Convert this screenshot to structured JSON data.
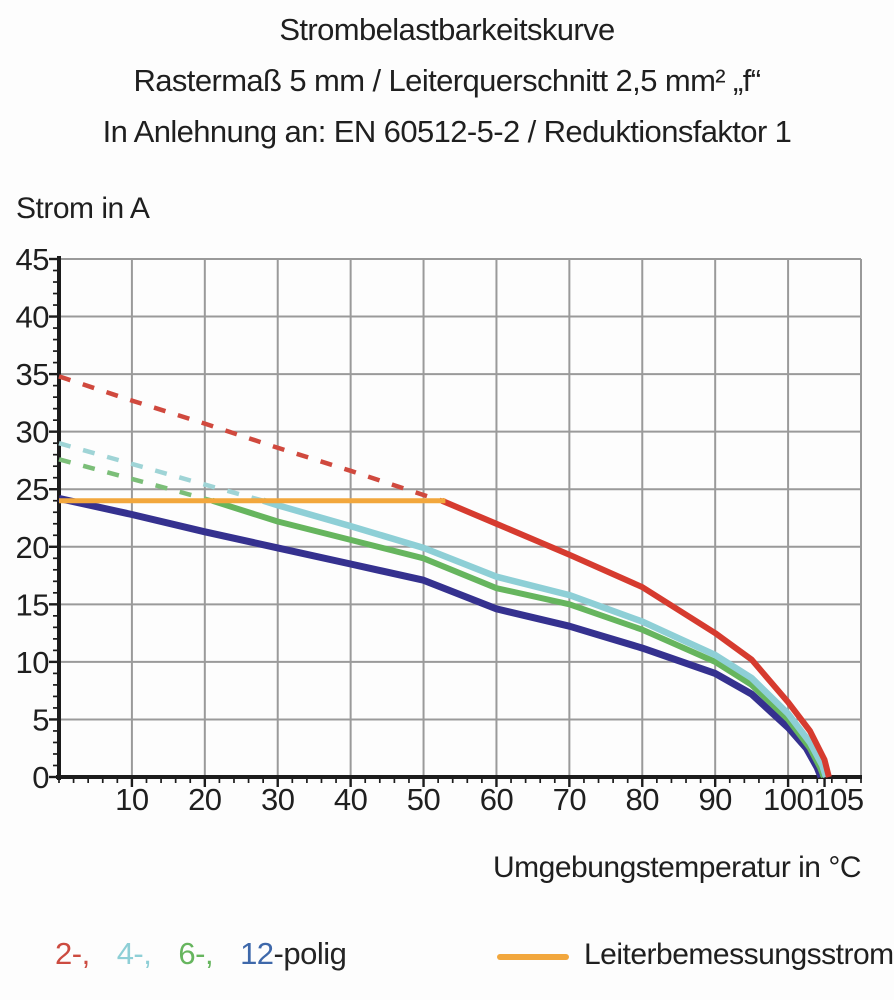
{
  "title": {
    "line1": "Strombelastbarkeitskurve",
    "line2": "Rastermaß 5 mm / Leiterquerschnitt 2,5 mm² „f“",
    "line3": "In Anlehnung an: EN 60512-5-2 / Reduktionsfaktor 1"
  },
  "chart_data": {
    "type": "line",
    "title": "Strombelastbarkeitskurve",
    "xlabel": "Umgebungstemperatur in °C",
    "ylabel": "Strom in A",
    "xlim": [
      0,
      110
    ],
    "ylim": [
      0,
      45
    ],
    "x_ticks": [
      10,
      20,
      30,
      40,
      50,
      60,
      70,
      80,
      90,
      100,
      105
    ],
    "y_ticks": [
      45,
      40,
      35,
      30,
      25,
      20,
      15,
      10,
      5,
      0
    ],
    "grid": true,
    "grid_color": "#9a9a9a",
    "legend_position": "bottom",
    "series": [
      {
        "name": "2-polig-extrapolated",
        "color": "#d0493e",
        "style": "dashed",
        "width": 4.5,
        "points": [
          [
            0,
            34.8
          ],
          [
            10,
            32.7
          ],
          [
            20,
            30.7
          ],
          [
            30,
            28.6
          ],
          [
            40,
            26.6
          ],
          [
            50,
            24.5
          ],
          [
            52.5,
            24
          ]
        ]
      },
      {
        "name": "4-polig-extrapolated",
        "color": "#9fd4d6",
        "style": "dashed",
        "width": 4.5,
        "points": [
          [
            0,
            29.0
          ],
          [
            10,
            27.2
          ],
          [
            20,
            25.4
          ],
          [
            28,
            24
          ]
        ]
      },
      {
        "name": "6-polig-extrapolated",
        "color": "#7bbe78",
        "style": "dashed",
        "width": 4.5,
        "points": [
          [
            0,
            27.6
          ],
          [
            10,
            25.9
          ],
          [
            21,
            24
          ]
        ]
      },
      {
        "name": "12-polig",
        "color": "#35318f",
        "style": "solid",
        "width": 7,
        "points": [
          [
            0,
            24.2
          ],
          [
            10,
            22.8
          ],
          [
            20,
            21.3
          ],
          [
            30,
            19.9
          ],
          [
            40,
            18.5
          ],
          [
            50,
            17.1
          ],
          [
            60,
            14.6
          ],
          [
            70,
            13.1
          ],
          [
            80,
            11.2
          ],
          [
            90,
            9.0
          ],
          [
            95,
            7.2
          ],
          [
            100,
            4.3
          ],
          [
            102.5,
            2.5
          ],
          [
            104,
            0.8
          ],
          [
            104.5,
            0
          ]
        ]
      },
      {
        "name": "6-polig",
        "color": "#66b55e",
        "style": "solid",
        "width": 6,
        "points": [
          [
            21,
            24
          ],
          [
            30,
            22.2
          ],
          [
            40,
            20.6
          ],
          [
            50,
            19.0
          ],
          [
            60,
            16.4
          ],
          [
            70,
            15.0
          ],
          [
            80,
            12.8
          ],
          [
            90,
            10.0
          ],
          [
            95,
            8.0
          ],
          [
            100,
            5.0
          ],
          [
            103,
            2.5
          ],
          [
            104.4,
            0.8
          ],
          [
            104.9,
            0
          ]
        ]
      },
      {
        "name": "4-polig",
        "color": "#8ecfd6",
        "style": "solid",
        "width": 6.5,
        "points": [
          [
            28,
            24
          ],
          [
            30,
            23.6
          ],
          [
            40,
            21.8
          ],
          [
            50,
            19.9
          ],
          [
            60,
            17.4
          ],
          [
            70,
            15.8
          ],
          [
            80,
            13.5
          ],
          [
            90,
            10.6
          ],
          [
            95,
            8.6
          ],
          [
            100,
            5.5
          ],
          [
            103,
            3.0
          ],
          [
            104.7,
            1.0
          ],
          [
            105.2,
            0
          ]
        ]
      },
      {
        "name": "2-polig",
        "color": "#d63b2f",
        "style": "solid",
        "width": 6,
        "points": [
          [
            52.5,
            24
          ],
          [
            60,
            22.0
          ],
          [
            70,
            19.3
          ],
          [
            80,
            16.5
          ],
          [
            90,
            12.5
          ],
          [
            95,
            10.2
          ],
          [
            100,
            6.5
          ],
          [
            103,
            4.0
          ],
          [
            105,
            1.5
          ],
          [
            105.6,
            0
          ]
        ]
      },
      {
        "name": "Leiterbemessungsstrom",
        "color": "#f2a73d",
        "style": "solid",
        "width": 5,
        "points": [
          [
            0,
            24
          ],
          [
            53,
            24
          ]
        ]
      }
    ]
  },
  "legend": {
    "pole_items": [
      {
        "label": "2-,",
        "color": "#cc4b40"
      },
      {
        "label": "4-,",
        "color": "#8ecfd6"
      },
      {
        "label": "6-,",
        "color": "#66b55e"
      },
      {
        "label": "12",
        "color": "#3e68aa"
      }
    ],
    "suffix": "-polig",
    "rated_current_label": "Leiterbemessungsstrom",
    "rated_current_color": "#f2a73d"
  },
  "colors": {
    "background": "#fdfdfd",
    "axis": "#1c1c1c",
    "grid": "#9a9a9a",
    "text": "#1f1f1f"
  }
}
